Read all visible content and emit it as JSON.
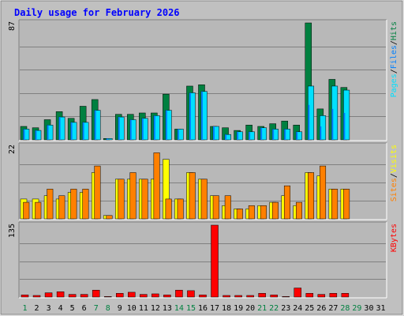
{
  "title": "Daily usage for February 2026",
  "colors": {
    "background": "#c0c0c0",
    "plot": "#b8b8b8",
    "frame_light": "#ffffff",
    "frame_dark": "#808080",
    "grid": "#808080",
    "title_text": "#0000ff",
    "axis_text": "#000000",
    "hits": "#008040",
    "files": "#0080ff",
    "pages": "#00e0ff",
    "visits": "#ffff00",
    "sites": "#ff8000",
    "kbytes": "#ff0000",
    "weekday_label": "#000000",
    "weekend_label": "#008040"
  },
  "chart_data": [
    {
      "type": "bar",
      "panel": "hits-files-pages",
      "ymax_label": "87",
      "ylim": [
        0,
        87
      ],
      "grid": true,
      "legend": [
        {
          "label": "Pages",
          "color_key": "pages"
        },
        {
          "label": "/",
          "color_key": "axis_text"
        },
        {
          "label": "Files",
          "color_key": "files"
        },
        {
          "label": "/",
          "color_key": "axis_text"
        },
        {
          "label": "Hits",
          "color_key": "hits"
        }
      ],
      "legend_placement": "right-vertical",
      "categories": [
        "1",
        "2",
        "3",
        "4",
        "5",
        "6",
        "7",
        "8",
        "9",
        "10",
        "11",
        "12",
        "13",
        "14",
        "15",
        "16",
        "17",
        "18",
        "19",
        "20",
        "21",
        "22",
        "23",
        "24",
        "25",
        "26",
        "27",
        "28",
        "29",
        "30",
        "31"
      ],
      "series": [
        {
          "name": "Hits",
          "color_key": "hits",
          "values": [
            10,
            9,
            15,
            21,
            16,
            25,
            30,
            1,
            19,
            19,
            20,
            20,
            34,
            8,
            40,
            41,
            10,
            9,
            7,
            11,
            10,
            12,
            14,
            11,
            87,
            23,
            45,
            39,
            0,
            0,
            0
          ]
        },
        {
          "name": "Files",
          "color_key": "files",
          "values": [
            8,
            7,
            11,
            17,
            13,
            13,
            22,
            1,
            17,
            15,
            16,
            18,
            22,
            8,
            35,
            36,
            10,
            4,
            6,
            6,
            9,
            8,
            8,
            6,
            26,
            10,
            23,
            20,
            0,
            0,
            0
          ]
        },
        {
          "name": "Pages",
          "color_key": "pages",
          "values": [
            8,
            7,
            11,
            17,
            13,
            13,
            22,
            1,
            17,
            15,
            16,
            18,
            22,
            8,
            35,
            36,
            10,
            4,
            6,
            6,
            9,
            8,
            8,
            6,
            40,
            18,
            40,
            37,
            0,
            0,
            0
          ]
        }
      ]
    },
    {
      "type": "bar",
      "panel": "visits-sites",
      "ymax_label": "22",
      "ylim": [
        0,
        22
      ],
      "grid": true,
      "legend": [
        {
          "label": "Sites",
          "color_key": "sites"
        },
        {
          "label": "/",
          "color_key": "axis_text"
        },
        {
          "label": "Visits",
          "color_key": "visits"
        }
      ],
      "legend_placement": "right-vertical",
      "categories": [
        "1",
        "2",
        "3",
        "4",
        "5",
        "6",
        "7",
        "8",
        "9",
        "10",
        "11",
        "12",
        "13",
        "14",
        "15",
        "16",
        "17",
        "18",
        "19",
        "20",
        "21",
        "22",
        "23",
        "24",
        "25",
        "26",
        "27",
        "28",
        "29",
        "30",
        "31"
      ],
      "series": [
        {
          "name": "Visits",
          "color_key": "visits",
          "values": [
            6,
            6,
            7,
            6,
            8,
            8,
            14,
            1,
            12,
            12,
            12,
            12,
            18,
            6,
            14,
            12,
            7,
            4,
            3,
            3,
            4,
            5,
            7,
            4,
            14,
            13,
            9,
            9,
            0,
            0,
            0
          ]
        },
        {
          "name": "Sites",
          "color_key": "sites",
          "values": [
            5,
            5,
            9,
            7,
            9,
            9,
            16,
            1,
            12,
            14,
            12,
            20,
            6,
            6,
            14,
            12,
            7,
            7,
            3,
            4,
            4,
            5,
            10,
            5,
            14,
            16,
            9,
            9,
            0,
            0,
            0
          ]
        }
      ]
    },
    {
      "type": "bar",
      "panel": "kbytes",
      "ymax_label": "135",
      "ylim": [
        0,
        135
      ],
      "grid": true,
      "legend": [
        {
          "label": "KBytes",
          "color_key": "kbytes"
        }
      ],
      "legend_placement": "right-vertical",
      "categories": [
        "1",
        "2",
        "3",
        "4",
        "5",
        "6",
        "7",
        "8",
        "9",
        "10",
        "11",
        "12",
        "13",
        "14",
        "15",
        "16",
        "17",
        "18",
        "19",
        "20",
        "21",
        "22",
        "23",
        "24",
        "25",
        "26",
        "27",
        "28",
        "29",
        "30",
        "31"
      ],
      "series": [
        {
          "name": "KBytes",
          "color_key": "kbytes",
          "values": [
            4,
            3,
            8,
            10,
            5,
            5,
            13,
            1,
            7,
            9,
            5,
            6,
            4,
            13,
            12,
            4,
            135,
            3,
            3,
            3,
            7,
            4,
            1,
            17,
            7,
            5,
            7,
            7,
            0,
            0,
            0
          ]
        }
      ]
    }
  ],
  "x_labels": [
    {
      "text": "1",
      "weekend": true
    },
    {
      "text": "2",
      "weekend": false
    },
    {
      "text": "3",
      "weekend": false
    },
    {
      "text": "4",
      "weekend": false
    },
    {
      "text": "5",
      "weekend": false
    },
    {
      "text": "6",
      "weekend": false
    },
    {
      "text": "7",
      "weekend": true
    },
    {
      "text": "8",
      "weekend": true
    },
    {
      "text": "9",
      "weekend": false
    },
    {
      "text": "10",
      "weekend": false
    },
    {
      "text": "11",
      "weekend": false
    },
    {
      "text": "12",
      "weekend": false
    },
    {
      "text": "13",
      "weekend": false
    },
    {
      "text": "14",
      "weekend": true
    },
    {
      "text": "15",
      "weekend": true
    },
    {
      "text": "16",
      "weekend": false
    },
    {
      "text": "17",
      "weekend": false
    },
    {
      "text": "18",
      "weekend": false
    },
    {
      "text": "19",
      "weekend": false
    },
    {
      "text": "20",
      "weekend": false
    },
    {
      "text": "21",
      "weekend": true
    },
    {
      "text": "22",
      "weekend": true
    },
    {
      "text": "23",
      "weekend": false
    },
    {
      "text": "24",
      "weekend": false
    },
    {
      "text": "25",
      "weekend": false
    },
    {
      "text": "26",
      "weekend": false
    },
    {
      "text": "27",
      "weekend": false
    },
    {
      "text": "28",
      "weekend": true
    },
    {
      "text": "29",
      "weekend": true
    },
    {
      "text": "30",
      "weekend": false
    },
    {
      "text": "31",
      "weekend": false
    }
  ]
}
